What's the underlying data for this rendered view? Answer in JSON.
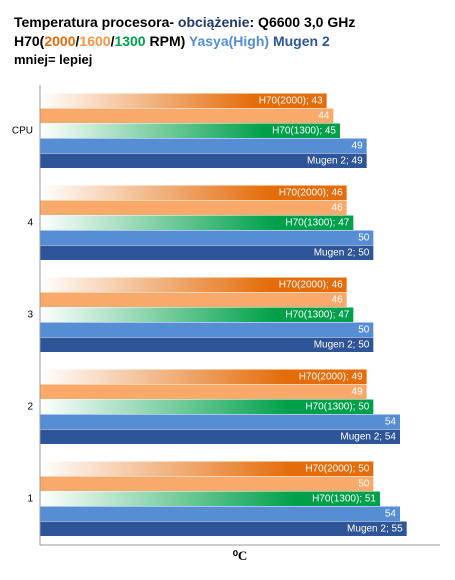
{
  "chart_data": {
    "type": "hbar",
    "title_lines": [
      [
        {
          "text": "Temperatura procesora- ",
          "color": "#000000"
        },
        {
          "text": "obciążenie",
          "color": "#1f3b6e"
        },
        {
          "text": ": Q6600 3,0 GHz",
          "color": "#000000"
        }
      ],
      [
        {
          "text": "H70(",
          "color": "#000000"
        },
        {
          "text": "2000",
          "color": "#e46c0a"
        },
        {
          "text": "/",
          "color": "#000000"
        },
        {
          "text": "1600",
          "color": "#f79646"
        },
        {
          "text": "/",
          "color": "#000000"
        },
        {
          "text": "1300",
          "color": "#00a04a"
        },
        {
          "text": " RPM)",
          "color": "#000000"
        },
        {
          "text": " Yasya(High)",
          "color": "#558ed5"
        },
        {
          "text": " Mugen 2",
          "color": "#2e5597"
        }
      ],
      [
        {
          "text": "mniej= lepiej",
          "color": "#000000"
        }
      ]
    ],
    "x_label": "⁰C",
    "categories": [
      "CPU",
      "4",
      "3",
      "2",
      "1"
    ],
    "xlim": [
      0,
      60
    ],
    "series": [
      {
        "color": "#e46c0a",
        "gradient": true,
        "values": [
          43,
          46,
          46,
          49,
          50
        ],
        "value_labels": [
          "H70(2000); 43",
          "H70(2000); 46",
          "H70(2000); 46",
          "H70(2000); 49",
          "H70(2000); 50"
        ]
      },
      {
        "color": "#f9a96a",
        "gradient": false,
        "values": [
          44,
          46,
          46,
          49,
          50
        ]
      },
      {
        "color": "#00a04a",
        "gradient": true,
        "values": [
          45,
          47,
          47,
          50,
          51
        ],
        "value_labels": [
          "H70(1300); 45",
          "H70(1300); 47",
          "H70(1300); 47",
          "H70(1300); 50",
          "H70(1300); 51"
        ]
      },
      {
        "color": "#558ed5",
        "gradient": false,
        "values": [
          49,
          50,
          50,
          54,
          54
        ]
      },
      {
        "color": "#2e5597",
        "gradient": false,
        "values": [
          49,
          50,
          50,
          54,
          55
        ],
        "value_labels": [
          "Mugen 2; 49",
          "Mugen 2; 50",
          "Mugen 2; 50",
          "Mugen 2; 54",
          "Mugen 2; 55"
        ]
      }
    ]
  }
}
